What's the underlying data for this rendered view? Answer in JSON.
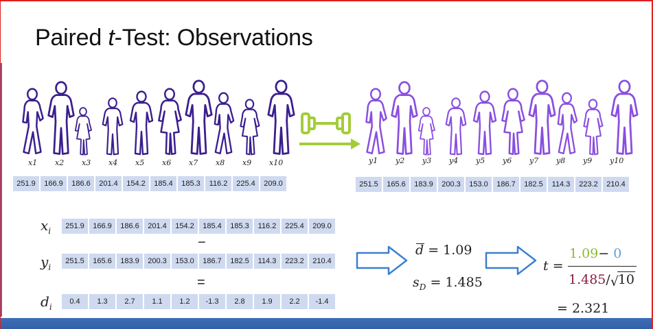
{
  "slide": {
    "title_pre": "Paired ",
    "title_t": "t",
    "title_post": "-Test: Observations"
  },
  "before": {
    "labels": [
      "x1",
      "x2",
      "x3",
      "x4",
      "x5",
      "x6",
      "x7",
      "x8",
      "x9",
      "x10"
    ],
    "values": [
      "251.9",
      "166.9",
      "186.6",
      "201.4",
      "154.2",
      "185.4",
      "185.3",
      "116.2",
      "225.4",
      "209.0"
    ]
  },
  "after": {
    "labels": [
      "y1",
      "y2",
      "y3",
      "y4",
      "y5",
      "y6",
      "y7",
      "y8",
      "y9",
      "y10"
    ],
    "values": [
      "251.5",
      "165.6",
      "183.9",
      "200.3",
      "153.0",
      "186.7",
      "182.5",
      "114.3",
      "223.2",
      "210.4"
    ]
  },
  "table": {
    "x_label": "x",
    "y_label": "y",
    "d_label": "d",
    "subscript": "i",
    "minus_sign": "−",
    "equals_sign": "=",
    "differences": [
      "0.4",
      "1.3",
      "2.7",
      "1.1",
      "1.2",
      "-1.3",
      "2.8",
      "1.9",
      "2.2",
      "-1.4"
    ]
  },
  "stats": {
    "dbar_symbol": "d",
    "dbar_value": "= 1.09",
    "sd_symbol": "s",
    "sd_subscript": "D",
    "sd_value": "= 1.485"
  },
  "formula": {
    "t_symbol": "t",
    "eq": "=",
    "num_mean": "1.09",
    "num_minus": "− ",
    "num_mu": "0",
    "den_sd": "1.485",
    "den_slash": "/",
    "den_n": "10",
    "result": "= 2.321"
  },
  "colors": {
    "before_figure": "#3b1f8e",
    "after_figure": "#8a4fe0",
    "arrow_green": "#a4cc3a",
    "cell_fill": "#cfdaf0",
    "block_arrow": "#3a7fd0",
    "footer": "#3563ad"
  }
}
